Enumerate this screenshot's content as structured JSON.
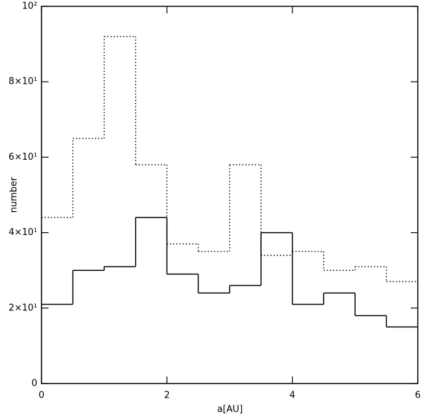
{
  "chart_data": {
    "type": "step-histogram",
    "xlabel": "a[AU]",
    "ylabel": "number",
    "bins": [
      0,
      0.5,
      1,
      1.5,
      2,
      2.5,
      3,
      3.5,
      4,
      4.5,
      5,
      5.5,
      6
    ],
    "series": [
      {
        "color": "#000000",
        "style": "solid",
        "values": [
          21,
          30,
          31,
          44,
          29,
          24,
          26,
          40,
          21,
          24,
          18,
          15
        ]
      },
      {
        "color": "#000000",
        "style": "dotted",
        "values": [
          44,
          65,
          92,
          58,
          37,
          35,
          58,
          34,
          35,
          30,
          31,
          27
        ]
      }
    ],
    "xlim": [
      0,
      6
    ],
    "xticks": [
      0,
      2,
      4,
      6
    ],
    "ylim": [
      0,
      100
    ],
    "yticks": [
      0,
      {
        "value": 20,
        "label": "2×10¹"
      },
      {
        "value": 40,
        "label": "4×10¹"
      },
      {
        "value": 60,
        "label": "6×10¹"
      },
      {
        "value": 80,
        "label": "8×10¹"
      },
      {
        "value": 100,
        "label": "10²"
      }
    ]
  }
}
